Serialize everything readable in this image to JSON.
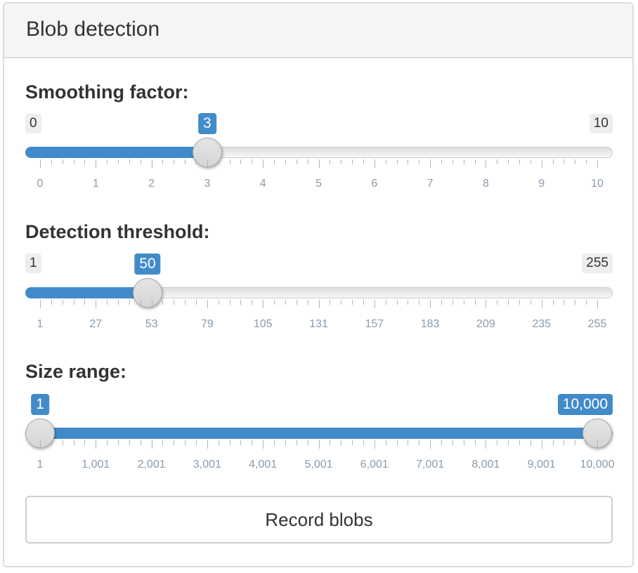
{
  "panel": {
    "title": "Blob detection"
  },
  "sliders": [
    {
      "label": "Smoothing factor:",
      "min_label": "0",
      "max_label": "10",
      "min": 0,
      "max": 10,
      "value": 3,
      "value_label": "3",
      "ticks": [
        "0",
        "1",
        "2",
        "3",
        "4",
        "5",
        "6",
        "7",
        "8",
        "9",
        "10"
      ]
    },
    {
      "label": "Detection threshold:",
      "min_label": "1",
      "max_label": "255",
      "min": 1,
      "max": 255,
      "value": 50,
      "value_label": "50",
      "ticks": [
        "1",
        "27",
        "53",
        "79",
        "105",
        "131",
        "157",
        "183",
        "209",
        "235",
        "255"
      ]
    },
    {
      "label": "Size range:",
      "min": 1,
      "max": 10000,
      "value_low": 1,
      "value_high": 10000,
      "low_label": "1",
      "high_label": "10,000",
      "ticks": [
        "1",
        "1,001",
        "2,001",
        "3,001",
        "4,001",
        "5,001",
        "6,001",
        "7,001",
        "8,001",
        "9,001",
        "10,000"
      ]
    }
  ],
  "button": {
    "label": "Record blobs"
  },
  "colors": {
    "accent": "#428bca",
    "track": "#e6e6e6",
    "tick": "#a9b7c6"
  }
}
